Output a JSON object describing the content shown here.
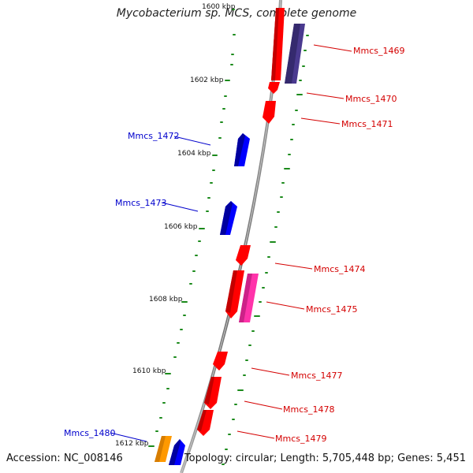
{
  "title": "Mycobacterium sp. MCS, complete genome",
  "accession": "Accession: NC_008146",
  "topology": "Topology: circular; Length: 5,705,448 bp; Genes: 5,451",
  "colors": {
    "forward_gene": "#ff0000",
    "reverse_gene": "#0000ff",
    "backbone": "#7f7f7f",
    "ticks": "#008000",
    "highlight_pink": "#ff33aa",
    "highlight_purple": "#4a3a8f",
    "highlight_orange": "#ff9900"
  },
  "kbp_labels": [
    "1600 kbp",
    "1602 kbp",
    "1604 kbp",
    "1606 kbp",
    "1608 kbp",
    "1610 kbp",
    "1612 kbp"
  ],
  "genes": [
    "Mmcs_1469",
    "Mmcs_1470",
    "Mmcs_1471",
    "Mmcs_1472",
    "Mmcs_1473",
    "Mmcs_1474",
    "Mmcs_1475",
    "Mmcs_1477",
    "Mmcs_1478",
    "Mmcs_1479",
    "Mmcs_1480"
  ]
}
